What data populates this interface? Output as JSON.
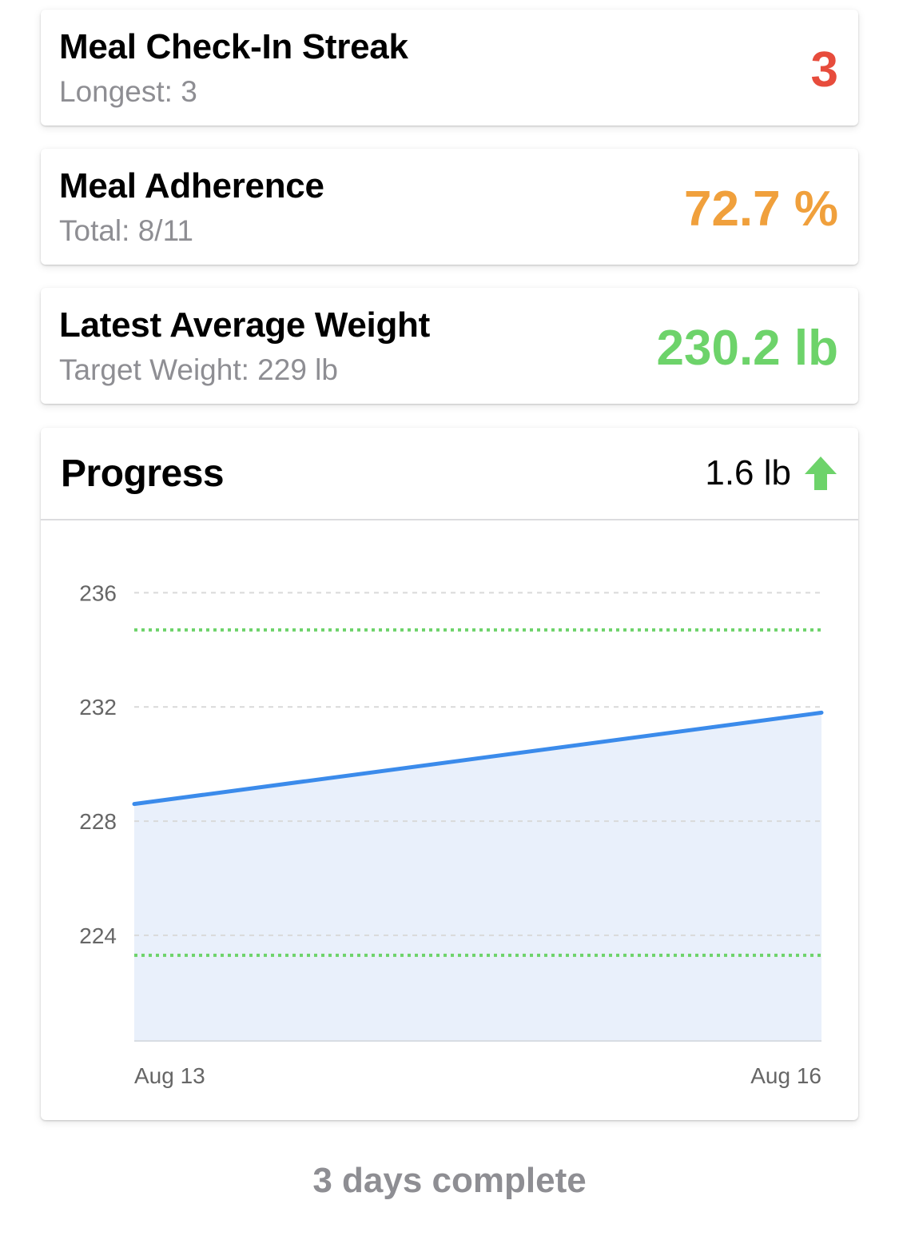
{
  "cards": {
    "streak": {
      "title": "Meal Check-In Streak",
      "subtitle": "Longest: 3",
      "value": "3",
      "color": "#e74c3c"
    },
    "adherence": {
      "title": "Meal Adherence",
      "subtitle": "Total: 8/11",
      "value": "72.7 %",
      "color": "#f0a03c"
    },
    "weight": {
      "title": "Latest Average Weight",
      "subtitle": "Target Weight: 229 lb",
      "value": "230.2 lb",
      "color": "#6dd36a"
    }
  },
  "progress": {
    "title": "Progress",
    "change": "1.6 lb",
    "change_icon": "arrow-up-icon",
    "change_color": "#6dd36a"
  },
  "chart_data": {
    "type": "area",
    "x": [
      "Aug 13",
      "Aug 16"
    ],
    "series": [
      {
        "values": [
          228.6,
          231.8
        ],
        "color": "#3b8beb",
        "fill": "#e9f0fb"
      }
    ],
    "reference_lines": [
      {
        "y": 234.7,
        "style": "dotted",
        "color": "#6dd36a"
      },
      {
        "y": 223.3,
        "style": "dotted",
        "color": "#6dd36a"
      }
    ],
    "y_ticks": [
      236,
      232,
      228,
      224
    ],
    "x_ticks": [
      "Aug 13",
      "Aug 16"
    ],
    "ylim": [
      220.3,
      237.3
    ],
    "grid": true,
    "gridline_color": "#d9d9d9"
  },
  "footer": {
    "text": "3 days complete"
  }
}
